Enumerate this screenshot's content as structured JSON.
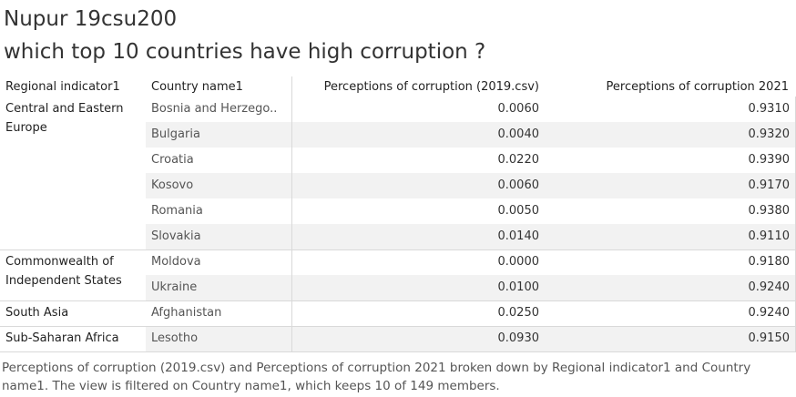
{
  "title_line1": "Nupur 19csu200",
  "title_line2": "which top 10 countries have high corruption ?",
  "headers": {
    "region": "Regional indicator1",
    "country": "Country name1",
    "c2019": "Perceptions of corruption (2019.csv)",
    "c2021": "Perceptions of corruption 2021"
  },
  "regions": [
    {
      "name": "Central and Eastern Europe",
      "rows": 6
    },
    {
      "name": "Commonwealth of Independent States",
      "rows": 2
    },
    {
      "name": "South Asia",
      "rows": 1
    },
    {
      "name": "Sub-Saharan Africa",
      "rows": 1
    }
  ],
  "rows": [
    {
      "country": "Bosnia and Herzego..",
      "v2019": "0.0060",
      "v2021": "0.9310"
    },
    {
      "country": "Bulgaria",
      "v2019": "0.0040",
      "v2021": "0.9320"
    },
    {
      "country": "Croatia",
      "v2019": "0.0220",
      "v2021": "0.9390"
    },
    {
      "country": "Kosovo",
      "v2019": "0.0060",
      "v2021": "0.9170"
    },
    {
      "country": "Romania",
      "v2019": "0.0050",
      "v2021": "0.9380"
    },
    {
      "country": "Slovakia",
      "v2019": "0.0140",
      "v2021": "0.9110"
    },
    {
      "country": "Moldova",
      "v2019": "0.0000",
      "v2021": "0.9180"
    },
    {
      "country": "Ukraine",
      "v2019": "0.0100",
      "v2021": "0.9240"
    },
    {
      "country": "Afghanistan",
      "v2019": "0.0250",
      "v2021": "0.9240"
    },
    {
      "country": "Lesotho",
      "v2019": "0.0930",
      "v2021": "0.9150"
    }
  ],
  "caption": "Perceptions of corruption (2019.csv) and Perceptions of corruption 2021 broken down by Regional indicator1 and Country name1. The view is filtered on Country name1, which keeps 10 of 149 members.",
  "chart_data": {
    "type": "table",
    "columns": [
      "Regional indicator1",
      "Country name1",
      "Perceptions of corruption (2019.csv)",
      "Perceptions of corruption 2021"
    ],
    "data": [
      [
        "Central and Eastern Europe",
        "Bosnia and Herzego..",
        0.006,
        0.931
      ],
      [
        "Central and Eastern Europe",
        "Bulgaria",
        0.004,
        0.932
      ],
      [
        "Central and Eastern Europe",
        "Croatia",
        0.022,
        0.939
      ],
      [
        "Central and Eastern Europe",
        "Kosovo",
        0.006,
        0.917
      ],
      [
        "Central and Eastern Europe",
        "Romania",
        0.005,
        0.938
      ],
      [
        "Central and Eastern Europe",
        "Slovakia",
        0.014,
        0.911
      ],
      [
        "Commonwealth of Independent States",
        "Moldova",
        0.0,
        0.918
      ],
      [
        "Commonwealth of Independent States",
        "Ukraine",
        0.01,
        0.924
      ],
      [
        "South Asia",
        "Afghanistan",
        0.025,
        0.924
      ],
      [
        "Sub-Saharan Africa",
        "Lesotho",
        0.093,
        0.915
      ]
    ]
  }
}
